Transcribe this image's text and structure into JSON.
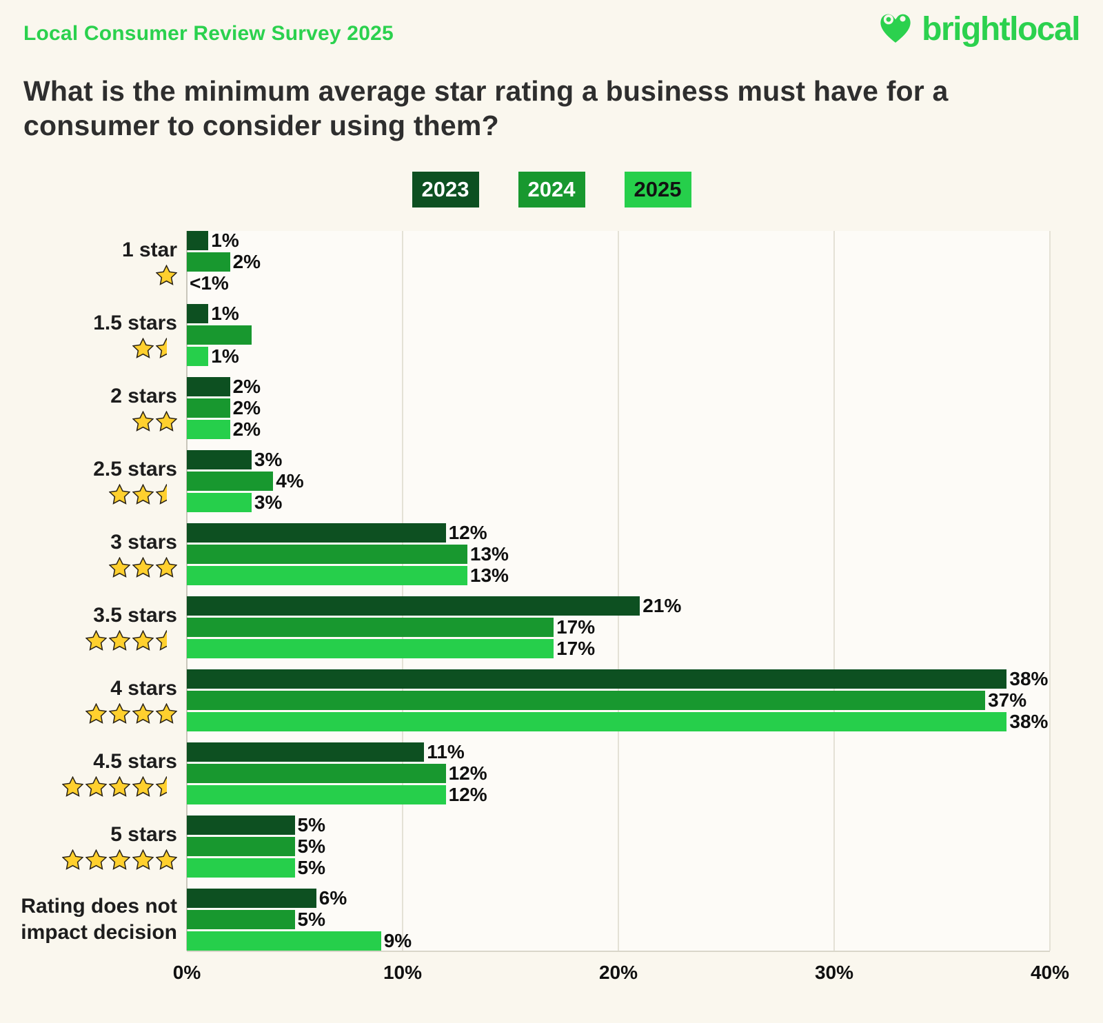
{
  "page": {
    "background": "#faf7ee"
  },
  "header": {
    "survey_label": "Local Consumer Review Survey 2025",
    "title_line1": "What is the minimum average star rating a business must have for a",
    "title_line2": "consumer to consider using them?",
    "logo_text": "brightlocal",
    "accent_green": "#2bd14e",
    "title_color": "#2e2e2e"
  },
  "legend": {
    "items": [
      {
        "label": "2023",
        "color": "#0d5021",
        "text_color": "#ffffff"
      },
      {
        "label": "2024",
        "color": "#18982f",
        "text_color": "#ffffff"
      },
      {
        "label": "2025",
        "color": "#26cf4b",
        "text_color": "#121212"
      }
    ]
  },
  "chart_data": {
    "type": "bar",
    "orientation": "horizontal",
    "title": "What is the minimum average star rating a business must have for a consumer to consider using them?",
    "xlabel": "",
    "ylabel": "",
    "xlim": [
      0,
      40
    ],
    "x_ticks": [
      "0%",
      "10%",
      "20%",
      "30%",
      "40%"
    ],
    "x_tick_values": [
      0,
      10,
      20,
      30,
      40
    ],
    "grid": true,
    "legend_position": "top",
    "star_color": "#ffd02e",
    "star_outline": "#2b2417",
    "categories": [
      {
        "label": "1 star",
        "stars": 1,
        "half": false
      },
      {
        "label": "1.5 stars",
        "stars": 1,
        "half": true
      },
      {
        "label": "2 stars",
        "stars": 2,
        "half": false
      },
      {
        "label": "2.5 stars",
        "stars": 2,
        "half": true
      },
      {
        "label": "3 stars",
        "stars": 3,
        "half": false
      },
      {
        "label": "3.5 stars",
        "stars": 3,
        "half": true
      },
      {
        "label": "4 stars",
        "stars": 4,
        "half": false
      },
      {
        "label": "4.5 stars",
        "stars": 4,
        "half": true
      },
      {
        "label": "5 stars",
        "stars": 5,
        "half": false
      },
      {
        "label": "Rating does not impact decision",
        "label_line1": "Rating does not",
        "label_line2": "impact decision",
        "stars": 0,
        "half": false
      }
    ],
    "series": [
      {
        "name": "2023",
        "color": "#0d5021",
        "values": [
          1,
          1,
          2,
          3,
          12,
          21,
          38,
          11,
          5,
          6
        ],
        "labels": [
          "1%",
          "1%",
          "2%",
          "3%",
          "12%",
          "21%",
          "38%",
          "11%",
          "5%",
          "6%"
        ]
      },
      {
        "name": "2024",
        "color": "#18982f",
        "values": [
          2,
          3,
          2,
          4,
          13,
          17,
          37,
          12,
          5,
          5
        ],
        "labels": [
          "2%",
          "",
          "2%",
          "4%",
          "13%",
          "17%",
          "37%",
          "12%",
          "5%",
          "5%"
        ]
      },
      {
        "name": "2025",
        "color": "#26cf4b",
        "values": [
          0,
          1,
          2,
          3,
          13,
          17,
          38,
          12,
          5,
          9
        ],
        "labels": [
          "<1%",
          "1%",
          "2%",
          "3%",
          "13%",
          "17%",
          "38%",
          "12%",
          "5%",
          "9%"
        ]
      }
    ]
  }
}
